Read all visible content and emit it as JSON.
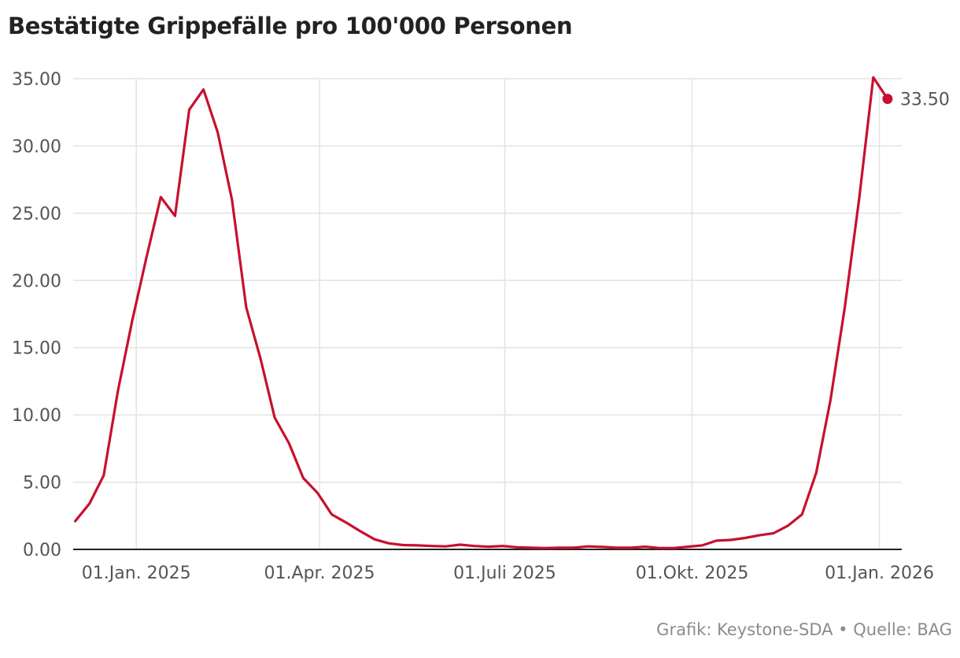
{
  "title": "Bestätigte Grippefälle pro 100'000 Personen",
  "source": "Grafik: Keystone-SDA • Quelle: BAG",
  "colors": {
    "line": "#c8102e",
    "grid": "#e3e3e3",
    "axis": "#222222",
    "text": "#555555"
  },
  "chart_data": {
    "type": "line",
    "title": "Bestätigte Grippefälle pro 100'000 Personen",
    "xlabel": "",
    "ylabel": "",
    "ylim": [
      0,
      35
    ],
    "xlim": [
      "2024-12-01",
      "2026-01-12"
    ],
    "yticks": [
      0,
      5,
      10,
      15,
      20,
      25,
      30,
      35
    ],
    "ytick_labels": [
      "0.00",
      "5.00",
      "10.00",
      "15.00",
      "20.00",
      "25.00",
      "30.00",
      "35.00"
    ],
    "xticks": [
      "2025-01-01",
      "2025-04-01",
      "2025-07-01",
      "2025-10-01",
      "2026-01-01"
    ],
    "xtick_labels": [
      "01.Jan. 2025",
      "01.Apr. 2025",
      "01.Juli 2025",
      "01.Okt. 2025",
      "01.Jan. 2026"
    ],
    "grid": true,
    "last_value_label": "33.50",
    "x": [
      "2024-12-02",
      "2024-12-09",
      "2024-12-16",
      "2024-12-23",
      "2024-12-30",
      "2025-01-06",
      "2025-01-13",
      "2025-01-20",
      "2025-01-27",
      "2025-02-03",
      "2025-02-10",
      "2025-02-17",
      "2025-02-24",
      "2025-03-03",
      "2025-03-10",
      "2025-03-17",
      "2025-03-24",
      "2025-03-31",
      "2025-04-07",
      "2025-04-14",
      "2025-04-21",
      "2025-04-28",
      "2025-05-05",
      "2025-05-12",
      "2025-05-19",
      "2025-05-26",
      "2025-06-02",
      "2025-06-09",
      "2025-06-16",
      "2025-06-23",
      "2025-06-30",
      "2025-07-07",
      "2025-07-14",
      "2025-07-21",
      "2025-07-28",
      "2025-08-04",
      "2025-08-11",
      "2025-08-18",
      "2025-08-25",
      "2025-09-01",
      "2025-09-08",
      "2025-09-15",
      "2025-09-22",
      "2025-09-29",
      "2025-10-06",
      "2025-10-13",
      "2025-10-20",
      "2025-10-27",
      "2025-11-03",
      "2025-11-10",
      "2025-11-17",
      "2025-11-24",
      "2025-12-01",
      "2025-12-08",
      "2025-12-15",
      "2025-12-22",
      "2025-12-29",
      "2026-01-05"
    ],
    "series": [
      {
        "values": [
          2.1,
          3.4,
          5.5,
          11.8,
          17.0,
          21.7,
          26.2,
          24.8,
          32.7,
          34.2,
          31.0,
          26.0,
          18.0,
          14.2,
          9.8,
          7.9,
          5.3,
          4.2,
          2.6,
          2.0,
          1.35,
          0.75,
          0.45,
          0.32,
          0.3,
          0.25,
          0.22,
          0.35,
          0.25,
          0.2,
          0.25,
          0.15,
          0.12,
          0.1,
          0.12,
          0.12,
          0.22,
          0.18,
          0.12,
          0.12,
          0.2,
          0.1,
          0.1,
          0.2,
          0.3,
          0.65,
          0.7,
          0.85,
          1.05,
          1.2,
          1.75,
          2.6,
          5.7,
          11.1,
          18.0,
          26.0,
          35.1,
          33.5
        ]
      }
    ]
  }
}
